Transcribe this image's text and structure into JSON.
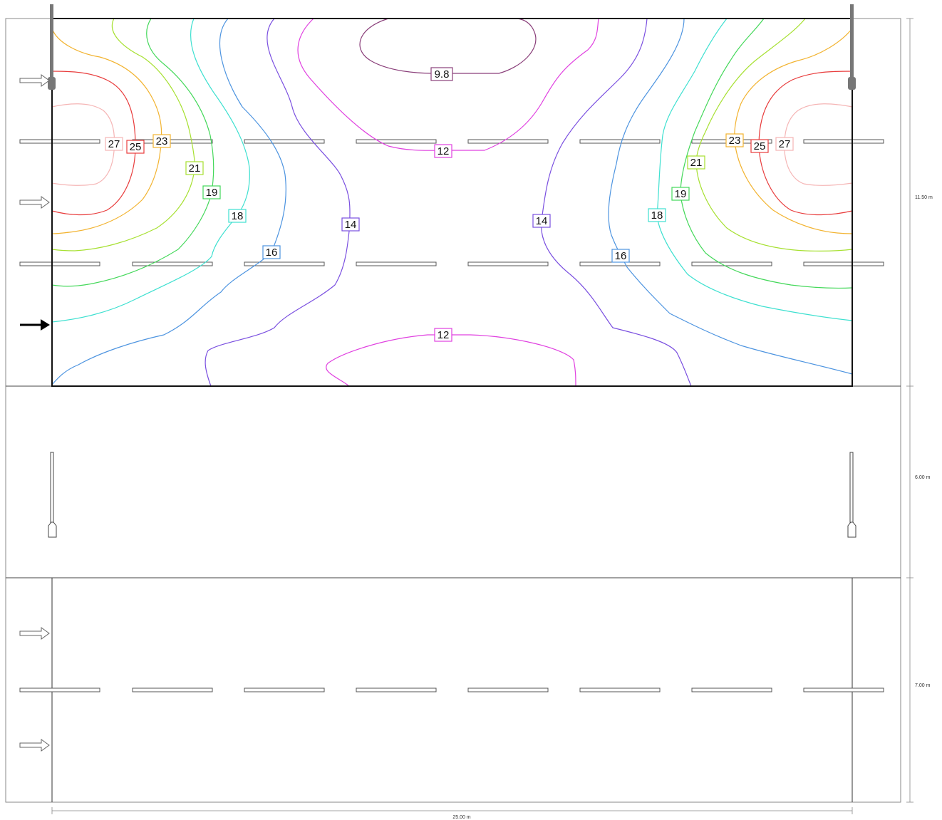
{
  "dimensions": {
    "road_width": "25.00 m",
    "top_section_height": "11.50 m",
    "middle_section_height": "6.00 m",
    "bottom_section_height": "7.00 m"
  },
  "isolines": {
    "colors": {
      "9.8": "#8a3f7a",
      "12": "#e040e0",
      "14": "#7a4fe0",
      "16": "#4d94e0",
      "18": "#3ee0d0",
      "19": "#44d85a",
      "21": "#a6e030",
      "23": "#f2b330",
      "25": "#e83c3c",
      "27": "#f5b5b5"
    },
    "labels": [
      {
        "text": "9.8",
        "color": "#8a3f7a"
      },
      {
        "text": "12",
        "color": "#e040e0"
      },
      {
        "text": "12",
        "color": "#e040e0"
      },
      {
        "text": "14",
        "color": "#7a4fe0"
      },
      {
        "text": "14",
        "color": "#7a4fe0"
      },
      {
        "text": "16",
        "color": "#4d94e0"
      },
      {
        "text": "16",
        "color": "#4d94e0"
      },
      {
        "text": "18",
        "color": "#3ee0d0"
      },
      {
        "text": "18",
        "color": "#3ee0d0"
      },
      {
        "text": "19",
        "color": "#44d85a"
      },
      {
        "text": "19",
        "color": "#44d85a"
      },
      {
        "text": "21",
        "color": "#a6e030"
      },
      {
        "text": "21",
        "color": "#a6e030"
      },
      {
        "text": "23",
        "color": "#f2b330"
      },
      {
        "text": "23",
        "color": "#f2b330"
      },
      {
        "text": "25",
        "color": "#e83c3c"
      },
      {
        "text": "25",
        "color": "#e83c3c"
      },
      {
        "text": "27",
        "color": "#f5b5b5"
      },
      {
        "text": "27",
        "color": "#f5b5b5"
      }
    ]
  },
  "icons": {
    "pole": "street-light-pole-icon",
    "traffic_arrow": "traffic-direction-arrow-icon",
    "observer_arrow": "observer-position-arrow-icon"
  }
}
